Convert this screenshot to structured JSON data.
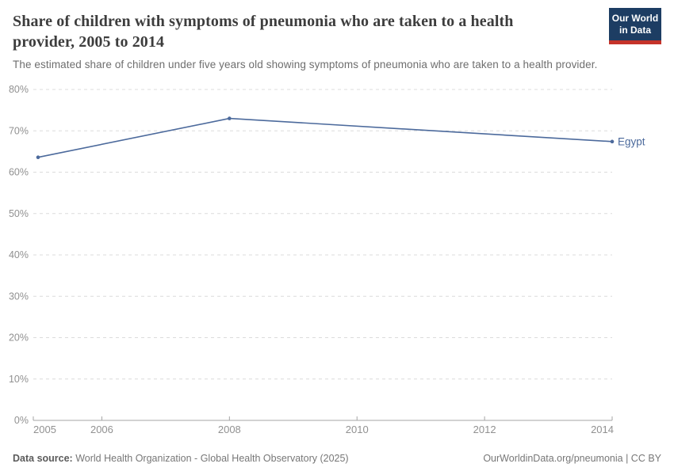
{
  "header": {
    "title": "Share of children with symptoms of pneumonia who are taken to a health provider, 2005 to 2014",
    "logo_line1": "Our World",
    "logo_line2": "in Data",
    "logo_bg_color": "#1d3d63",
    "logo_accent_color": "#c5332a"
  },
  "subtitle": "The estimated share of children under five years old showing symptoms of pneumonia who are taken to a health provider.",
  "chart_data": {
    "type": "line",
    "title": "Share of children with symptoms of pneumonia who are taken to a health provider, 2005 to 2014",
    "xlabel": "",
    "ylabel": "",
    "xlim": [
      2005,
      2014
    ],
    "ylim": [
      0,
      80
    ],
    "grid": true,
    "grid_style": "dashed",
    "legend_position": "end-of-line-label",
    "series": [
      {
        "name": "Egypt",
        "color": "#4c6a9c",
        "points": [
          {
            "x": 2005,
            "y": 63.6
          },
          {
            "x": 2008,
            "y": 73.0
          },
          {
            "x": 2014,
            "y": 67.4
          }
        ]
      }
    ],
    "x_ticks": [
      {
        "v": 2005,
        "label": "2005"
      },
      {
        "v": 2006,
        "label": "2006"
      },
      {
        "v": 2008,
        "label": "2008"
      },
      {
        "v": 2010,
        "label": "2010"
      },
      {
        "v": 2012,
        "label": "2012"
      },
      {
        "v": 2014,
        "label": "2014"
      }
    ],
    "y_ticks": [
      {
        "v": 0,
        "label": "0%"
      },
      {
        "v": 10,
        "label": "10%"
      },
      {
        "v": 20,
        "label": "20%"
      },
      {
        "v": 30,
        "label": "30%"
      },
      {
        "v": 40,
        "label": "40%"
      },
      {
        "v": 50,
        "label": "50%"
      },
      {
        "v": 60,
        "label": "60%"
      },
      {
        "v": 70,
        "label": "70%"
      },
      {
        "v": 80,
        "label": "80%"
      }
    ],
    "colors": {
      "gridline": "#dcdcdc",
      "axis": "#a5a5a5",
      "tick_label": "#919191"
    }
  },
  "footer": {
    "datasource_label": "Data source:",
    "datasource_text": "World Health Organization - Global Health Observatory (2025)",
    "link_text": "OurWorldinData.org/pneumonia",
    "separator": " | ",
    "license_text": "CC BY"
  }
}
